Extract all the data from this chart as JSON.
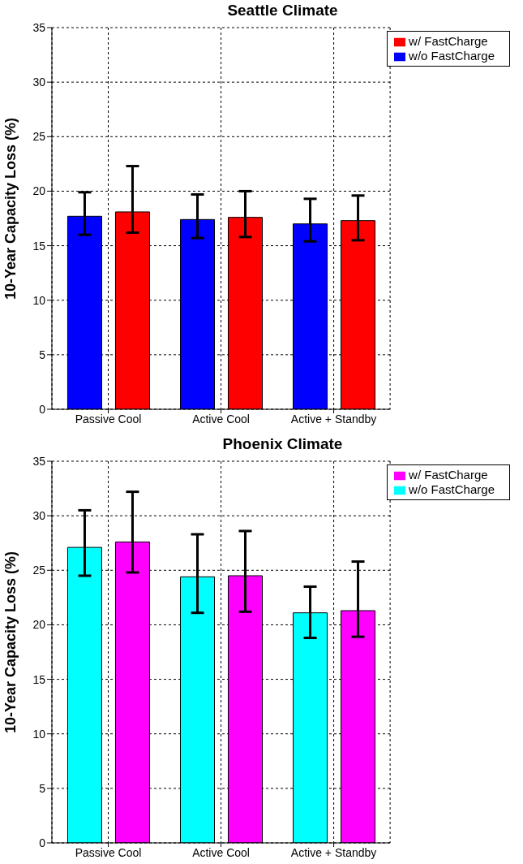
{
  "chart_data": [
    {
      "type": "bar",
      "title": "Seattle Climate",
      "ylabel": "10-Year Capacity Loss (%)",
      "categories": [
        "Passive Cool",
        "Active Cool",
        "Active + Standby"
      ],
      "series": [
        {
          "name": "w/o FastCharge",
          "color": "#0000ff",
          "values": [
            17.7,
            17.4,
            17.0
          ],
          "errors": [
            [
              16.0,
              19.9
            ],
            [
              15.7,
              19.7
            ],
            [
              15.4,
              19.3
            ]
          ]
        },
        {
          "name": "w/ FastCharge",
          "color": "#ff0000",
          "values": [
            18.1,
            17.6,
            17.3
          ],
          "errors": [
            [
              16.2,
              22.3
            ],
            [
              15.8,
              20.0
            ],
            [
              15.5,
              19.6
            ]
          ]
        }
      ],
      "ylim": [
        0,
        35
      ],
      "yticks": [
        0,
        5,
        10,
        15,
        20,
        25,
        30,
        35
      ],
      "grid": true,
      "legend": "top right"
    },
    {
      "type": "bar",
      "title": "Phoenix Climate",
      "ylabel": "10-Year Capacity Loss (%)",
      "categories": [
        "Passive Cool",
        "Active Cool",
        "Active + Standby"
      ],
      "series": [
        {
          "name": "w/o FastCharge",
          "color": "#00ffff",
          "values": [
            27.1,
            24.4,
            21.1
          ],
          "errors": [
            [
              24.5,
              30.5
            ],
            [
              21.1,
              28.3
            ],
            [
              18.8,
              23.5
            ]
          ]
        },
        {
          "name": "w/ FastCharge",
          "color": "#ff00ff",
          "values": [
            27.6,
            24.5,
            21.3
          ],
          "errors": [
            [
              24.8,
              32.2
            ],
            [
              21.2,
              28.6
            ],
            [
              18.9,
              25.8
            ]
          ]
        }
      ],
      "ylim": [
        0,
        35
      ],
      "yticks": [
        0,
        5,
        10,
        15,
        20,
        25,
        30,
        35
      ],
      "grid": true,
      "legend": "top right"
    }
  ]
}
